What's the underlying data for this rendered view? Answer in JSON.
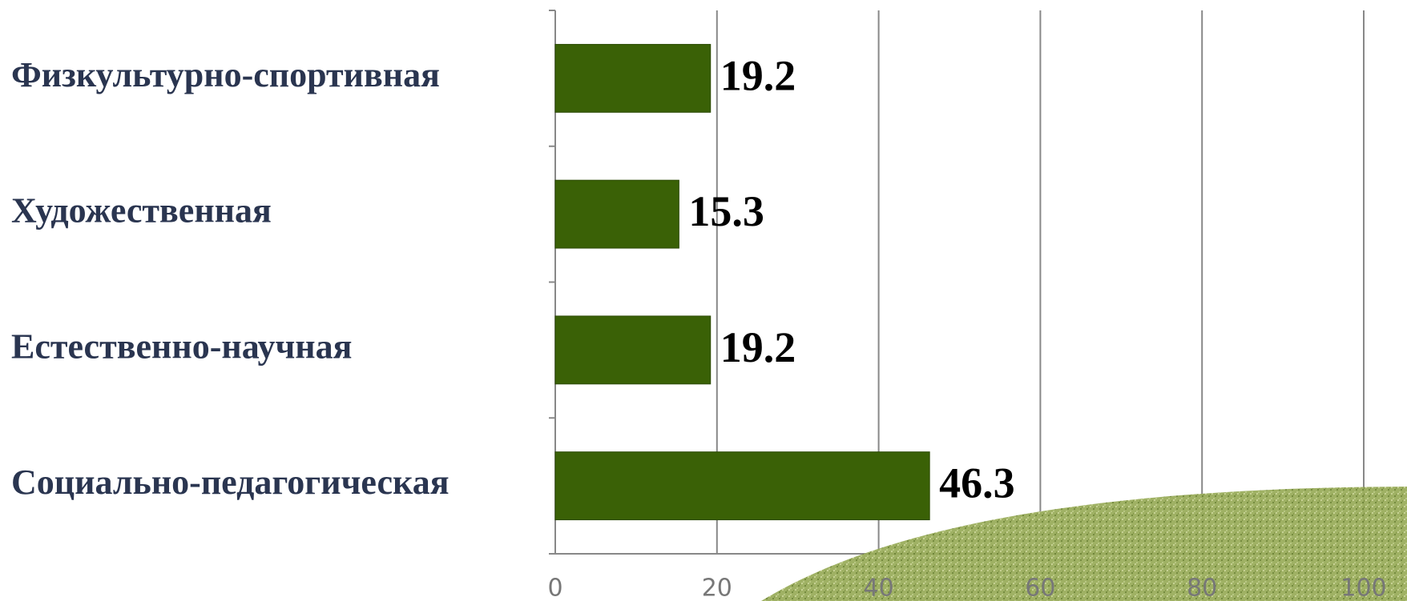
{
  "chart_data": {
    "type": "bar",
    "orientation": "horizontal",
    "categories": [
      "Физкультурно-спортивная",
      "Художественная",
      "Естественно-научная",
      "Социально-педагогическая"
    ],
    "values": [
      19.2,
      15.3,
      19.2,
      46.3
    ],
    "color": "#3a6106",
    "xlim": [
      0,
      100
    ],
    "xticks": [
      0,
      20,
      40,
      60,
      80,
      100
    ],
    "grid": true
  }
}
